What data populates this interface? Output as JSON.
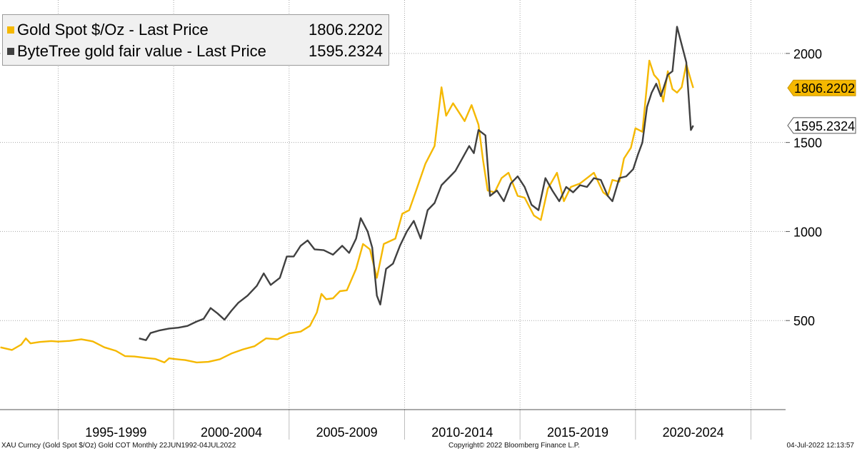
{
  "legend": [
    {
      "name": "Gold Spot $/Oz - Last Price",
      "value": "1806.2202",
      "color": "#f5b800"
    },
    {
      "name": "ByteTree gold fair value - Last Price",
      "value": "1595.2324",
      "color": "#404040"
    }
  ],
  "footer": {
    "left": "XAU Curncy (Gold Spot  $/Oz) Gold COT  Monthly 22JUN1992-04JUL2022",
    "center": "Copyright© 2022 Bloomberg Finance L.P.",
    "right": "04-Jul-2022 12:13:57"
  },
  "chart_data": {
    "type": "line",
    "x_range": [
      1992.48,
      2026.5
    ],
    "ylim": [
      0,
      2300
    ],
    "y_ticks": [
      500,
      1000,
      1500,
      2000
    ],
    "x_ticks": [
      1995,
      2000,
      2005,
      2010,
      2015,
      2020,
      2025
    ],
    "x_labels": [
      {
        "text": "1995-1999",
        "x": 1997.5
      },
      {
        "text": "2000-2004",
        "x": 2002.5
      },
      {
        "text": "2005-2009",
        "x": 2007.5
      },
      {
        "text": "2010-2014",
        "x": 2012.5
      },
      {
        "text": "2015-2019",
        "x": 2017.5
      },
      {
        "text": "2020-2024",
        "x": 2022.5
      }
    ],
    "grid": true,
    "series": [
      {
        "name": "Gold Spot $/Oz - Last Price",
        "color": "#f5b800",
        "last_label": "1806.2202",
        "points": [
          [
            1992.5,
            350
          ],
          [
            1993.0,
            335
          ],
          [
            1993.4,
            365
          ],
          [
            1993.6,
            400
          ],
          [
            1993.8,
            372
          ],
          [
            1994.2,
            380
          ],
          [
            1994.7,
            385
          ],
          [
            1995.0,
            382
          ],
          [
            1995.5,
            386
          ],
          [
            1996.0,
            395
          ],
          [
            1996.5,
            383
          ],
          [
            1997.0,
            350
          ],
          [
            1997.5,
            330
          ],
          [
            1997.9,
            300
          ],
          [
            1998.3,
            298
          ],
          [
            1998.8,
            290
          ],
          [
            1999.2,
            285
          ],
          [
            1999.6,
            265
          ],
          [
            1999.8,
            288
          ],
          [
            2000.0,
            285
          ],
          [
            2000.5,
            278
          ],
          [
            2001.0,
            265
          ],
          [
            2001.5,
            268
          ],
          [
            2002.0,
            283
          ],
          [
            2002.5,
            315
          ],
          [
            2003.0,
            338
          ],
          [
            2003.5,
            356
          ],
          [
            2004.0,
            400
          ],
          [
            2004.5,
            395
          ],
          [
            2005.0,
            428
          ],
          [
            2005.5,
            438
          ],
          [
            2005.9,
            470
          ],
          [
            2006.2,
            545
          ],
          [
            2006.4,
            650
          ],
          [
            2006.6,
            620
          ],
          [
            2006.9,
            625
          ],
          [
            2007.2,
            665
          ],
          [
            2007.5,
            670
          ],
          [
            2007.9,
            790
          ],
          [
            2008.2,
            930
          ],
          [
            2008.5,
            900
          ],
          [
            2008.8,
            740
          ],
          [
            2009.1,
            930
          ],
          [
            2009.6,
            960
          ],
          [
            2009.9,
            1100
          ],
          [
            2010.2,
            1120
          ],
          [
            2010.5,
            1230
          ],
          [
            2010.9,
            1380
          ],
          [
            2011.3,
            1480
          ],
          [
            2011.6,
            1810
          ],
          [
            2011.8,
            1650
          ],
          [
            2012.1,
            1720
          ],
          [
            2012.6,
            1620
          ],
          [
            2012.9,
            1710
          ],
          [
            2013.2,
            1600
          ],
          [
            2013.4,
            1400
          ],
          [
            2013.6,
            1230
          ],
          [
            2013.9,
            1220
          ],
          [
            2014.2,
            1300
          ],
          [
            2014.5,
            1330
          ],
          [
            2014.9,
            1200
          ],
          [
            2015.2,
            1190
          ],
          [
            2015.6,
            1090
          ],
          [
            2015.9,
            1065
          ],
          [
            2016.2,
            1240
          ],
          [
            2016.6,
            1330
          ],
          [
            2016.9,
            1170
          ],
          [
            2017.2,
            1250
          ],
          [
            2017.6,
            1270
          ],
          [
            2017.9,
            1300
          ],
          [
            2018.2,
            1330
          ],
          [
            2018.6,
            1220
          ],
          [
            2018.8,
            1200
          ],
          [
            2019.0,
            1290
          ],
          [
            2019.3,
            1280
          ],
          [
            2019.5,
            1410
          ],
          [
            2019.8,
            1470
          ],
          [
            2020.0,
            1580
          ],
          [
            2020.3,
            1560
          ],
          [
            2020.6,
            1960
          ],
          [
            2020.8,
            1880
          ],
          [
            2021.0,
            1850
          ],
          [
            2021.2,
            1730
          ],
          [
            2021.4,
            1900
          ],
          [
            2021.6,
            1800
          ],
          [
            2021.8,
            1780
          ],
          [
            2022.0,
            1810
          ],
          [
            2022.2,
            1940
          ],
          [
            2022.4,
            1850
          ],
          [
            2022.5,
            1806.22
          ]
        ]
      },
      {
        "name": "ByteTree gold fair value - Last Price",
        "color": "#404040",
        "last_label": "1595.2324",
        "points": [
          [
            1998.5,
            400
          ],
          [
            1998.8,
            390
          ],
          [
            1999.0,
            430
          ],
          [
            1999.4,
            445
          ],
          [
            1999.8,
            455
          ],
          [
            2000.2,
            460
          ],
          [
            2000.6,
            470
          ],
          [
            2001.0,
            495
          ],
          [
            2001.3,
            510
          ],
          [
            2001.6,
            570
          ],
          [
            2001.9,
            540
          ],
          [
            2002.2,
            505
          ],
          [
            2002.5,
            555
          ],
          [
            2002.8,
            600
          ],
          [
            2003.2,
            640
          ],
          [
            2003.6,
            695
          ],
          [
            2003.9,
            765
          ],
          [
            2004.2,
            700
          ],
          [
            2004.6,
            740
          ],
          [
            2004.9,
            860
          ],
          [
            2005.2,
            860
          ],
          [
            2005.5,
            920
          ],
          [
            2005.8,
            950
          ],
          [
            2006.1,
            900
          ],
          [
            2006.5,
            895
          ],
          [
            2006.9,
            870
          ],
          [
            2007.3,
            920
          ],
          [
            2007.6,
            880
          ],
          [
            2007.9,
            960
          ],
          [
            2008.1,
            1075
          ],
          [
            2008.4,
            1000
          ],
          [
            2008.6,
            910
          ],
          [
            2008.8,
            640
          ],
          [
            2008.95,
            590
          ],
          [
            2009.2,
            790
          ],
          [
            2009.5,
            820
          ],
          [
            2009.8,
            920
          ],
          [
            2010.1,
            1000
          ],
          [
            2010.4,
            1060
          ],
          [
            2010.7,
            960
          ],
          [
            2011.0,
            1120
          ],
          [
            2011.3,
            1160
          ],
          [
            2011.6,
            1260
          ],
          [
            2011.9,
            1300
          ],
          [
            2012.2,
            1340
          ],
          [
            2012.5,
            1410
          ],
          [
            2012.8,
            1480
          ],
          [
            2013.0,
            1440
          ],
          [
            2013.2,
            1570
          ],
          [
            2013.5,
            1540
          ],
          [
            2013.7,
            1200
          ],
          [
            2014.0,
            1230
          ],
          [
            2014.3,
            1170
          ],
          [
            2014.6,
            1270
          ],
          [
            2014.9,
            1310
          ],
          [
            2015.2,
            1250
          ],
          [
            2015.5,
            1150
          ],
          [
            2015.8,
            1120
          ],
          [
            2016.1,
            1300
          ],
          [
            2016.4,
            1230
          ],
          [
            2016.7,
            1170
          ],
          [
            2017.0,
            1250
          ],
          [
            2017.3,
            1220
          ],
          [
            2017.6,
            1260
          ],
          [
            2017.9,
            1250
          ],
          [
            2018.2,
            1300
          ],
          [
            2018.5,
            1290
          ],
          [
            2018.8,
            1200
          ],
          [
            2019.0,
            1170
          ],
          [
            2019.3,
            1300
          ],
          [
            2019.6,
            1310
          ],
          [
            2019.9,
            1350
          ],
          [
            2020.1,
            1430
          ],
          [
            2020.3,
            1500
          ],
          [
            2020.5,
            1700
          ],
          [
            2020.7,
            1780
          ],
          [
            2020.9,
            1830
          ],
          [
            2021.1,
            1760
          ],
          [
            2021.4,
            1880
          ],
          [
            2021.6,
            1900
          ],
          [
            2021.8,
            2150
          ],
          [
            2022.0,
            2050
          ],
          [
            2022.2,
            1950
          ],
          [
            2022.4,
            1570
          ],
          [
            2022.5,
            1595.23
          ]
        ]
      }
    ]
  }
}
